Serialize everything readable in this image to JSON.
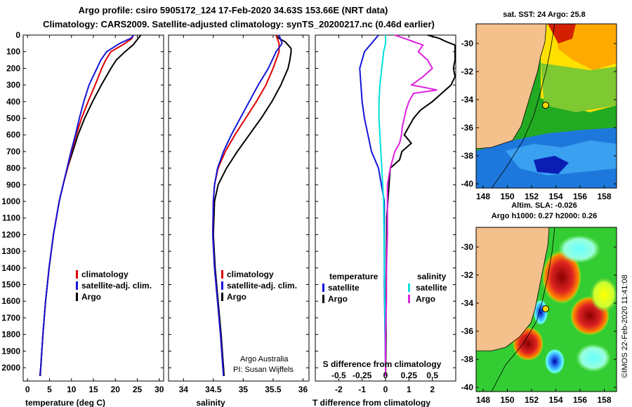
{
  "header": {
    "title_line1": "Argo profile: csiro 5905172_124 17-Feb-2020 34.63S 153.66E (NRT data)",
    "title_line2": "Climatology: CARS2009. Satellite-adjusted climatology: synTS_20200217.nc (0.46d earlier)"
  },
  "colors": {
    "argo": "#000000",
    "clim": "#e00000",
    "sat": "#1414d8",
    "s_sat": "#00e0e0",
    "s_argo": "#e020e0",
    "land": "#f4c08c"
  },
  "chart_data": [
    {
      "type": "line",
      "title": "",
      "xlabel": "temperature (deg C)",
      "ylabel": "depth",
      "xlim": [
        -1,
        31
      ],
      "ylim": [
        2080,
        0
      ],
      "xticks": [
        "0",
        "5",
        "10",
        "15",
        "20",
        "25",
        "30"
      ],
      "yticks": [
        "0",
        "100",
        "200",
        "300",
        "400",
        "500",
        "600",
        "700",
        "800",
        "900",
        "1000",
        "1100",
        "1200",
        "1300",
        "1400",
        "1500",
        "1600",
        "1700",
        "1800",
        "1900",
        "2000"
      ],
      "legend": {
        "items": [
          "climatology",
          "satellite-adj. clim.",
          "Argo"
        ],
        "position": "center-right"
      },
      "series": [
        {
          "name": "Argo",
          "color": "#000000",
          "depth": [
            0,
            20,
            40,
            60,
            100,
            150,
            200,
            300,
            400,
            500,
            600,
            700,
            800,
            900,
            1000,
            1200,
            1400,
            1600,
            1800,
            2000,
            2050
          ],
          "values": [
            25.8,
            25.2,
            24.6,
            24.0,
            22.2,
            20.2,
            19.0,
            16.8,
            14.8,
            13.0,
            11.5,
            10.3,
            9.1,
            8.1,
            7.2,
            5.9,
            4.9,
            4.1,
            3.5,
            3.0,
            2.9
          ]
        },
        {
          "name": "climatology",
          "color": "#e00000",
          "depth": [
            0,
            20,
            50,
            100,
            150,
            200,
            300,
            400,
            500,
            600,
            700,
            800,
            900,
            1000,
            1200,
            1400,
            1600,
            1800,
            2000,
            2050
          ],
          "values": [
            24.0,
            23.8,
            22.2,
            19.0,
            17.8,
            16.9,
            15.4,
            13.8,
            12.3,
            11.1,
            10.0,
            9.1,
            8.1,
            7.2,
            5.9,
            4.9,
            4.1,
            3.5,
            3.0,
            2.8
          ]
        },
        {
          "name": "satellite-adj. clim.",
          "color": "#1414d8",
          "depth": [
            0,
            20,
            50,
            100,
            150,
            200,
            300,
            400,
            500,
            600,
            700,
            800,
            900,
            1000,
            1200,
            1400,
            1600,
            1800,
            2000,
            2050
          ],
          "values": [
            24.2,
            23.5,
            21.0,
            18.0,
            16.7,
            15.8,
            14.0,
            12.8,
            11.8,
            10.9,
            9.9,
            9.0,
            8.1,
            7.2,
            5.9,
            4.9,
            4.1,
            3.5,
            3.0,
            2.8
          ]
        }
      ]
    },
    {
      "type": "line",
      "title": "",
      "xlabel": "salinity",
      "xlim": [
        33.75,
        36.1
      ],
      "ylim": [
        2080,
        0
      ],
      "xticks": [
        "34",
        "34.5",
        "35",
        "35.5",
        "36"
      ],
      "legend": {
        "items": [
          "climatology",
          "satellite-adj. clim.",
          "Argo"
        ],
        "position": "center-right"
      },
      "annotation_line1": "Argo Australia",
      "annotation_line2": "PI: Susan Wijffels",
      "series": [
        {
          "name": "Argo",
          "color": "#000000",
          "depth": [
            0,
            20,
            40,
            60,
            80,
            100,
            150,
            200,
            300,
            400,
            500,
            600,
            700,
            800,
            900,
            1000,
            1200,
            1400,
            1600,
            1800,
            2000,
            2050
          ],
          "values": [
            35.55,
            35.6,
            35.7,
            35.75,
            35.8,
            35.8,
            35.78,
            35.75,
            35.63,
            35.48,
            35.3,
            35.1,
            34.9,
            34.72,
            34.58,
            34.52,
            34.5,
            34.53,
            34.58,
            34.63,
            34.67,
            34.68
          ]
        },
        {
          "name": "climatology",
          "color": "#e00000",
          "depth": [
            0,
            50,
            100,
            200,
            300,
            400,
            500,
            600,
            700,
            800,
            900,
            1000,
            1200,
            1400,
            1600,
            1800,
            2000,
            2050
          ],
          "values": [
            35.55,
            35.6,
            35.6,
            35.5,
            35.38,
            35.22,
            35.04,
            34.86,
            34.7,
            34.58,
            34.52,
            34.5,
            34.49,
            34.52,
            34.57,
            34.62,
            34.66,
            34.67
          ]
        },
        {
          "name": "satellite-adj. clim.",
          "color": "#1414d8",
          "depth": [
            0,
            50,
            100,
            200,
            300,
            400,
            500,
            600,
            700,
            800,
            900,
            1000,
            1200,
            1400,
            1600,
            1800,
            2000,
            2050
          ],
          "values": [
            35.6,
            35.65,
            35.55,
            35.42,
            35.25,
            35.1,
            34.95,
            34.8,
            34.67,
            34.57,
            34.52,
            34.5,
            34.49,
            34.52,
            34.57,
            34.62,
            34.66,
            34.67
          ]
        }
      ]
    },
    {
      "type": "line",
      "title": "",
      "xlabel": "T difference from climatology",
      "xlabel_top": "S difference from climatology",
      "xlim": [
        -3,
        3
      ],
      "ylim": [
        2080,
        0
      ],
      "xticks": [
        "-2",
        "-1",
        "0",
        "1",
        "2"
      ],
      "xticks_top": [
        "-0.5",
        "-0.25",
        "0",
        "0.25",
        "0.5"
      ],
      "legend_left": {
        "title": "temperature",
        "items": [
          "satellite",
          "Argo"
        ]
      },
      "legend_right": {
        "title": "salinity",
        "items": [
          "satellite",
          "Argo"
        ]
      },
      "series": [
        {
          "name": "temperature satellite",
          "color": "#1414d8",
          "depth": [
            0,
            50,
            100,
            200,
            300,
            400,
            500,
            600,
            700,
            800,
            1000,
            1500,
            2000,
            2050
          ],
          "values": [
            -0.3,
            -0.6,
            -0.9,
            -1.1,
            -1.05,
            -1.0,
            -0.9,
            -0.75,
            -0.6,
            -0.3,
            -0.05,
            -0.05,
            0,
            0
          ]
        },
        {
          "name": "temperature Argo",
          "color": "#000000",
          "depth": [
            0,
            20,
            40,
            60,
            80,
            100,
            150,
            200,
            250,
            300,
            350,
            400,
            450,
            500,
            550,
            600,
            650,
            700,
            750,
            800,
            900,
            1000,
            1100,
            1200,
            1400,
            1600,
            1800,
            2000,
            2050
          ],
          "values": [
            1.8,
            2.3,
            2.6,
            3.0,
            3.3,
            3.4,
            3.0,
            2.9,
            3.1,
            2.8,
            2.4,
            2.0,
            1.5,
            1.2,
            1.0,
            0.8,
            1.1,
            0.7,
            0.6,
            0.2,
            0.15,
            0.1,
            0.05,
            0.05,
            0.03,
            0.02,
            0.02,
            0.01,
            0.0
          ]
        },
        {
          "name": "salinity satellite",
          "color": "#00e0e0",
          "depth": [
            0,
            50,
            100,
            200,
            300,
            400,
            500,
            600,
            800,
            1000,
            1500,
            2000,
            2050
          ],
          "values": [
            0.0,
            0.0,
            -0.02,
            -0.04,
            -0.06,
            -0.07,
            -0.07,
            -0.06,
            -0.04,
            -0.02,
            -0.01,
            0.0,
            0.0
          ]
        },
        {
          "name": "salinity Argo",
          "color": "#e020e0",
          "depth": [
            0,
            20,
            40,
            60,
            100,
            150,
            200,
            250,
            300,
            330,
            350,
            400,
            450,
            500,
            550,
            600,
            650,
            700,
            800,
            900,
            1000,
            1200,
            1400,
            1600,
            1800,
            2000,
            2050
          ],
          "values": [
            0.1,
            0.2,
            0.3,
            0.4,
            0.35,
            0.45,
            0.5,
            0.4,
            0.28,
            0.55,
            0.3,
            0.25,
            0.22,
            0.2,
            0.18,
            0.17,
            0.15,
            0.1,
            0.05,
            0.02,
            0.02,
            0.02,
            0.01,
            0.01,
            0.0,
            0.0,
            0.0
          ]
        }
      ]
    }
  ],
  "maps": {
    "top": {
      "title": "sat. SST: 24 Argo: 25.8",
      "lat_ticks": [
        "-30",
        "-32",
        "-34",
        "-36",
        "-38",
        "-40"
      ],
      "lon_ticks": [
        "148",
        "150",
        "152",
        "154",
        "156",
        "158"
      ]
    },
    "bottom": {
      "title_line1": "Altim. SLA: -0.026",
      "title_line2": "Argo h1000: 0.27 h2000: 0.26",
      "lat_ticks": [
        "-30",
        "-32",
        "-34",
        "-36",
        "-38",
        "-40"
      ],
      "lon_ticks": [
        "148",
        "150",
        "152",
        "154",
        "156",
        "158"
      ]
    }
  },
  "credit": "©IMOS 22-Feb-2020 11:41:08"
}
